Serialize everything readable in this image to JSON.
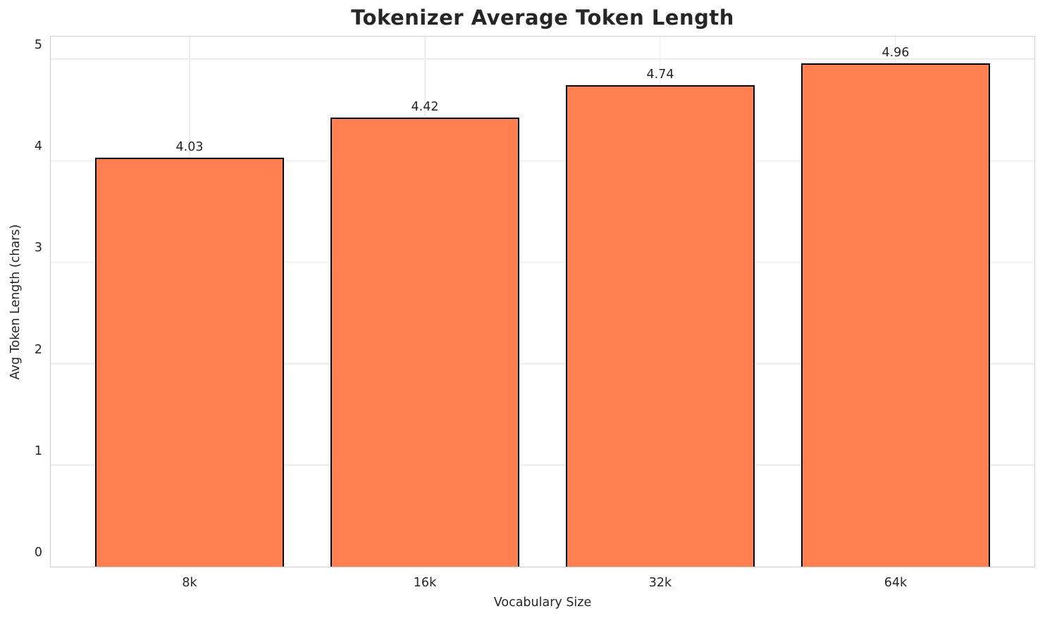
{
  "chart_data": {
    "type": "bar",
    "title": "Tokenizer Average Token Length",
    "xlabel": "Vocabulary Size",
    "ylabel": "Avg Token Length (chars)",
    "categories": [
      "8k",
      "16k",
      "32k",
      "64k"
    ],
    "values": [
      4.03,
      4.42,
      4.74,
      4.96
    ],
    "value_labels": [
      "4.03",
      "4.42",
      "4.74",
      "4.96"
    ],
    "yticks": [
      0,
      1,
      2,
      3,
      4,
      5
    ],
    "ytick_labels": [
      "0",
      "1",
      "2",
      "3",
      "4",
      "5"
    ],
    "ylim": [
      0,
      5.22
    ],
    "xlim_units": [
      -0.59,
      3.59
    ],
    "bar_width_units": 0.8,
    "grid": true,
    "legend_position": "none",
    "bar_color": "#FF7F50",
    "bar_edge_color": "#000000",
    "grid_color": "#ebebeb",
    "spine_color": "#cfcfcf",
    "text_color": "#262626",
    "background_color": "#ffffff"
  }
}
